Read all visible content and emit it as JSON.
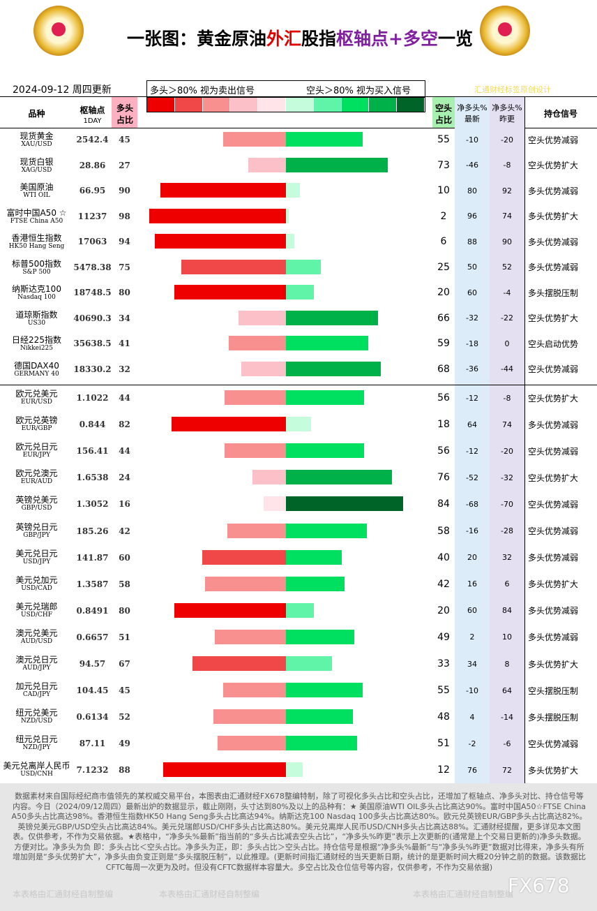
{
  "header": {
    "title": [
      "一张图：黄金原油",
      "外汇",
      "股指",
      "枢轴点",
      "+多空",
      "一览"
    ],
    "date": "2024-09-12  周四更新",
    "credit": "汇通财经标签原创设计",
    "legend": {
      "long_text": "多头＞80% 视为卖出信号",
      "short_text": "空头＞80% 视为买入信号"
    }
  },
  "columns": {
    "name": "品种",
    "pivot": "枢轴点",
    "pivot_sub": "1DAY",
    "long": "多头占比",
    "short": "空头占比",
    "net_latest": "净多头%最新",
    "net_prev": "净多头%昨更",
    "signal": "持仓信号"
  },
  "rows": [
    {
      "name": "现货黄金",
      "code": "XAU/USD",
      "pivot": 2542.4,
      "long": 45,
      "short": 55,
      "net_latest": -10,
      "net_prev": -20,
      "signal": "空头优势减弱"
    },
    {
      "name": "现货白银",
      "code": "XAG/USD",
      "pivot": 28.86,
      "long": 27,
      "short": 73,
      "net_latest": -46,
      "net_prev": -8,
      "signal": "空头优势扩大"
    },
    {
      "name": "美国原油",
      "code": "WTI OIL",
      "pivot": 66.95,
      "long": 90,
      "short": 10,
      "net_latest": 80,
      "net_prev": 92,
      "signal": "多头优势减弱"
    },
    {
      "name": "富时中国A50 ☆",
      "code": "FTSE China A50",
      "pivot": 11237,
      "long": 98,
      "short": 2,
      "net_latest": 96,
      "net_prev": 74,
      "signal": "多头优势扩大"
    },
    {
      "name": "香港恒生指数",
      "code": "HK50 Hang Seng",
      "pivot": 17063,
      "long": 94,
      "short": 6,
      "net_latest": 88,
      "net_prev": 90,
      "signal": "多头优势减弱"
    },
    {
      "name": "标普500指数",
      "code": "S&P 500",
      "pivot": 5478.38,
      "long": 75,
      "short": 25,
      "net_latest": 50,
      "net_prev": 52,
      "signal": "多头优势减弱"
    },
    {
      "name": "纳斯达克100",
      "code": "Nasdaq 100",
      "pivot": 18748.5,
      "long": 80,
      "short": 20,
      "net_latest": 60,
      "net_prev": -4,
      "signal": "多头摆脱压制"
    },
    {
      "name": "道琼斯指数",
      "code": "US30",
      "pivot": 40690.3,
      "long": 34,
      "short": 66,
      "net_latest": -32,
      "net_prev": -22,
      "signal": "空头优势扩大"
    },
    {
      "name": "日经225指数",
      "code": "Nikkei225",
      "pivot": 35638.5,
      "long": 41,
      "short": 59,
      "net_latest": -18,
      "net_prev": 0,
      "signal": "空头启动优势"
    },
    {
      "name": "德国DAX40",
      "code": "GERMANY 40",
      "pivot": 18330.2,
      "long": 32,
      "short": 68,
      "net_latest": -36,
      "net_prev": -44,
      "signal": "空头优势减弱"
    },
    {
      "name": "欧元兑美元",
      "code": "EUR/USD",
      "pivot": 1.1022,
      "long": 44,
      "short": 56,
      "net_latest": -12,
      "net_prev": -8,
      "signal": "空头优势扩大"
    },
    {
      "name": "欧元兑英镑",
      "code": "EUR/GBP",
      "pivot": 0.844,
      "long": 82,
      "short": 18,
      "net_latest": 64,
      "net_prev": 74,
      "signal": "多头优势减弱"
    },
    {
      "name": "欧元兑日元",
      "code": "EUR/JPY",
      "pivot": 156.41,
      "long": 44,
      "short": 56,
      "net_latest": -12,
      "net_prev": -20,
      "signal": "空头优势减弱"
    },
    {
      "name": "欧元兑澳元",
      "code": "EUR/AUD",
      "pivot": 1.6538,
      "long": 24,
      "short": 76,
      "net_latest": -52,
      "net_prev": -32,
      "signal": "空头优势扩大"
    },
    {
      "name": "英镑兑美元",
      "code": "GBP/USD",
      "pivot": 1.3052,
      "long": 16,
      "short": 84,
      "net_latest": -68,
      "net_prev": -70,
      "signal": "空头优势减弱"
    },
    {
      "name": "英镑兑日元",
      "code": "GBP/JPY",
      "pivot": 185.26,
      "long": 42,
      "short": 58,
      "net_latest": -16,
      "net_prev": -28,
      "signal": "空头优势减弱"
    },
    {
      "name": "美元兑日元",
      "code": "USD/JPY",
      "pivot": 141.87,
      "long": 60,
      "short": 40,
      "net_latest": 20,
      "net_prev": 32,
      "signal": "多头优势减弱"
    },
    {
      "name": "美元兑加元",
      "code": "USD/CAD",
      "pivot": 1.3587,
      "long": 58,
      "short": 42,
      "net_latest": 16,
      "net_prev": 6,
      "signal": "多头优势扩大"
    },
    {
      "name": "美元兑瑞郎",
      "code": "USD/CHF",
      "pivot": 0.8491,
      "long": 80,
      "short": 20,
      "net_latest": 60,
      "net_prev": 84,
      "signal": "多头优势减弱"
    },
    {
      "name": "澳元兑美元",
      "code": "AUD/USD",
      "pivot": 0.6657,
      "long": 51,
      "short": 49,
      "net_latest": 2,
      "net_prev": 10,
      "signal": "多头优势减弱"
    },
    {
      "name": "澳元兑日元",
      "code": "AUD/JPY",
      "pivot": 94.57,
      "long": 67,
      "short": 33,
      "net_latest": 34,
      "net_prev": 8,
      "signal": "多头优势扩大"
    },
    {
      "name": "加元兑日元",
      "code": "CAD/JPY",
      "pivot": 104.45,
      "long": 45,
      "short": 55,
      "net_latest": -10,
      "net_prev": 64,
      "signal": "空头摆脱压制"
    },
    {
      "name": "纽元兑美元",
      "code": "NZD/USD",
      "pivot": 0.6134,
      "long": 52,
      "short": 48,
      "net_latest": 4,
      "net_prev": -14,
      "signal": "多头摆脱压制"
    },
    {
      "name": "纽元兑日元",
      "code": "NZD/JPY",
      "pivot": 87.11,
      "long": 49,
      "short": 51,
      "net_latest": -2,
      "net_prev": -6,
      "signal": "空头优势减弱"
    },
    {
      "name": "美元兑离岸人民币",
      "code": "USD/CNH",
      "pivot": 7.1232,
      "long": 88,
      "short": 12,
      "net_latest": 76,
      "net_prev": 72,
      "signal": "多头优势扩大"
    }
  ],
  "footer": {
    "text": "数据素材来自国际经纪商市值领先的某权威交易平台，本图表由汇通财经FX678整编特制，除了可视化多头占比和空头占比，还增加了枢轴点、净多头对比、持仓信号等内容。今日（2024/09/12周四）最新出炉的数据显示，截止刚刚，头寸达到80%及以上的品种有：★ 美国原油WTI OIL多头占比高达90%。富时中国A50☆FTSE China A50多头占比高达98%。香港恒生指数HK50 Hang Seng多头占比高达94%。纳斯达克100 Nasdaq 100多头占比高达80%。欧元兑英镑EUR/GBP多头占比高达82%。英镑兑美元GBP/USD空头占比高达84%。美元兑瑞郎USD/CHF多头占比高达80%。美元兑离岸人民币USD/CNH多头占比高达88%。汇通财经提醒，更多详见本文图表。仅供参考，不作为交易依据。★表格中，“净多头%最新”指当前的“多头占比减去空头占比”，“净多头%昨更”表示上次更新的(通常是上个交易日更新的)净多头数据。方便对比。净多头为负 即：多头占比＜空头占比。净多头为正，即：多头占比＞空头占比。持仓信号是根据“净多头%最新”与“净多头%昨更”数据对比得来，净多头有所增加则是“多头优势扩大”，净多头由负变正则是“多头摆脱压制”，以此推理。(更新时间指汇通财经的当天更新日期，统计的是更新时间大概20分钟之前的数据。该数据比CFTC每周一次更为及时。但没有CFTC数据样本容量大。多空占比及仓位信号等内容，仅供参考，不作为交易依据)",
    "watermarks": [
      "本表格由汇通财经自制整编",
      "本表格由汇通财经自制整编",
      "本表格由汇通财经自制整编"
    ],
    "logo": "FX678"
  }
}
